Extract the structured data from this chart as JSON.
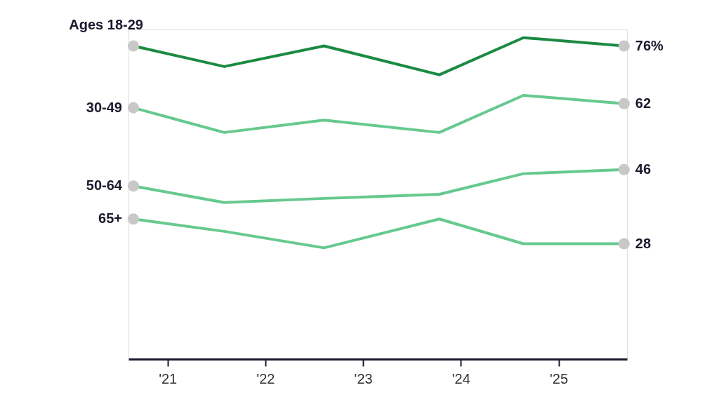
{
  "chart_data": {
    "type": "line",
    "xlim": [
      2020.6,
      2025.7
    ],
    "ylim": [
      0,
      80
    ],
    "xticks": [
      {
        "value": 2021,
        "label": "'21"
      },
      {
        "value": 2022,
        "label": "'22"
      },
      {
        "value": 2023,
        "label": "'23"
      },
      {
        "value": 2024,
        "label": "'24"
      },
      {
        "value": 2025,
        "label": "'25"
      }
    ],
    "tick_labels": "x",
    "grid": false,
    "line_style": "solid",
    "series": [
      {
        "name": "Ages 18-29",
        "color": "#1b8a42",
        "x": [
          2020.65,
          2021.58,
          2022.6,
          2023.78,
          2024.64,
          2025.67
        ],
        "values": [
          76,
          71,
          76,
          69,
          78,
          76
        ],
        "value_labels": [
          null,
          null,
          null,
          null,
          null,
          "76%"
        ]
      },
      {
        "name": "30-49",
        "color": "#66c98e",
        "x": [
          2020.65,
          2021.58,
          2022.6,
          2023.78,
          2024.64,
          2025.67
        ],
        "values": [
          61,
          55,
          58,
          55,
          64,
          62
        ],
        "value_labels": [
          null,
          null,
          null,
          null,
          null,
          "62"
        ]
      },
      {
        "name": "50-64",
        "color": "#66c98e",
        "x": [
          2020.65,
          2021.58,
          2022.6,
          2023.78,
          2024.64,
          2025.67
        ],
        "values": [
          42,
          38,
          39,
          40,
          45,
          46
        ],
        "value_labels": [
          null,
          null,
          null,
          null,
          null,
          "46"
        ]
      },
      {
        "name": "65+",
        "color": "#66c98e",
        "x": [
          2020.65,
          2021.58,
          2022.6,
          2023.78,
          2024.64,
          2025.67
        ],
        "values": [
          34,
          31,
          27,
          34,
          28,
          28
        ],
        "value_labels": [
          null,
          null,
          null,
          null,
          null,
          "28"
        ]
      }
    ]
  }
}
